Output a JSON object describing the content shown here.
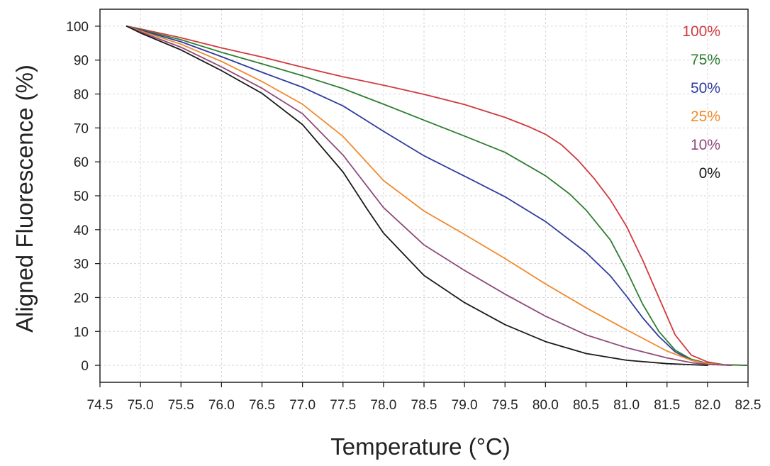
{
  "chart_data": {
    "type": "line",
    "xlabel": "Temperature (°C)",
    "ylabel": "Aligned Fluorescence (%)",
    "xlim": [
      74.5,
      82.5
    ],
    "ylim": [
      -5,
      105
    ],
    "x_ticks": [
      74.5,
      75.0,
      75.5,
      76.0,
      76.5,
      77.0,
      77.5,
      78.0,
      78.5,
      79.0,
      79.5,
      80.0,
      80.5,
      81.0,
      81.5,
      82.0,
      82.5
    ],
    "x_tick_labels": [
      "74.5",
      "75.0",
      "75.5",
      "76.0",
      "76.5",
      "77.0",
      "77.5",
      "78.0",
      "78.5",
      "79.0",
      "79.5",
      "80.0",
      "80.5",
      "81.0",
      "81.5",
      "82.0",
      "82.5"
    ],
    "y_ticks": [
      0,
      10,
      20,
      30,
      40,
      50,
      60,
      70,
      80,
      90,
      100
    ],
    "y_tick_labels": [
      "0",
      "10",
      "20",
      "30",
      "40",
      "50",
      "60",
      "70",
      "80",
      "90",
      "100"
    ],
    "grid": true,
    "legend_position": "top-right",
    "series": [
      {
        "name": "100%",
        "color": "#d03a3f",
        "points": [
          [
            74.83,
            100
          ],
          [
            75.0,
            99.2
          ],
          [
            75.5,
            96.6
          ],
          [
            76.0,
            93.6
          ],
          [
            76.5,
            90.9
          ],
          [
            77.0,
            87.9
          ],
          [
            77.5,
            85.1
          ],
          [
            78.0,
            82.6
          ],
          [
            78.5,
            79.9
          ],
          [
            79.0,
            76.9
          ],
          [
            79.5,
            73.1
          ],
          [
            79.8,
            70.3
          ],
          [
            80.0,
            68.1
          ],
          [
            80.2,
            65.0
          ],
          [
            80.4,
            60.5
          ],
          [
            80.6,
            55.1
          ],
          [
            80.8,
            48.8
          ],
          [
            81.0,
            41.0
          ],
          [
            81.2,
            31.0
          ],
          [
            81.4,
            20.0
          ],
          [
            81.6,
            9.0
          ],
          [
            81.8,
            3.0
          ],
          [
            82.0,
            1.0
          ],
          [
            82.2,
            0.2
          ],
          [
            82.5,
            0
          ]
        ]
      },
      {
        "name": "75%",
        "color": "#2e7d32",
        "points": [
          [
            74.83,
            100
          ],
          [
            75.0,
            99.0
          ],
          [
            75.5,
            96.0
          ],
          [
            76.0,
            92.3
          ],
          [
            76.5,
            88.9
          ],
          [
            77.0,
            85.4
          ],
          [
            77.5,
            81.6
          ],
          [
            78.0,
            77.0
          ],
          [
            78.5,
            72.3
          ],
          [
            79.0,
            67.6
          ],
          [
            79.5,
            62.8
          ],
          [
            80.0,
            55.9
          ],
          [
            80.3,
            50.5
          ],
          [
            80.5,
            45.8
          ],
          [
            80.8,
            37.0
          ],
          [
            81.0,
            28.0
          ],
          [
            81.2,
            18.0
          ],
          [
            81.4,
            10.0
          ],
          [
            81.6,
            4.5
          ],
          [
            81.8,
            1.8
          ],
          [
            82.0,
            0.6
          ],
          [
            82.2,
            0.2
          ],
          [
            82.5,
            0
          ]
        ]
      },
      {
        "name": "50%",
        "color": "#2f3c9e",
        "points": [
          [
            74.83,
            100
          ],
          [
            75.0,
            98.8
          ],
          [
            75.5,
            95.4
          ],
          [
            76.0,
            91.0
          ],
          [
            76.5,
            86.4
          ],
          [
            77.0,
            82.0
          ],
          [
            77.5,
            76.5
          ],
          [
            78.0,
            69.0
          ],
          [
            78.5,
            61.8
          ],
          [
            79.0,
            55.8
          ],
          [
            79.5,
            49.7
          ],
          [
            80.0,
            42.4
          ],
          [
            80.5,
            33.3
          ],
          [
            80.8,
            26.4
          ],
          [
            81.0,
            20.4
          ],
          [
            81.2,
            14.0
          ],
          [
            81.4,
            8.5
          ],
          [
            81.6,
            4.0
          ],
          [
            81.8,
            1.5
          ],
          [
            82.0,
            0.5
          ],
          [
            82.3,
            0
          ]
        ]
      },
      {
        "name": "25%",
        "color": "#f08a2e",
        "points": [
          [
            74.83,
            100
          ],
          [
            75.0,
            98.6
          ],
          [
            75.5,
            94.7
          ],
          [
            76.0,
            89.6
          ],
          [
            76.5,
            83.7
          ],
          [
            77.0,
            77.0
          ],
          [
            77.5,
            67.5
          ],
          [
            78.0,
            54.5
          ],
          [
            78.5,
            45.5
          ],
          [
            79.0,
            38.6
          ],
          [
            79.5,
            31.5
          ],
          [
            80.0,
            24.0
          ],
          [
            80.5,
            17.0
          ],
          [
            81.0,
            10.5
          ],
          [
            81.5,
            4.2
          ],
          [
            81.8,
            1.5
          ],
          [
            82.0,
            0.5
          ],
          [
            82.3,
            0
          ]
        ]
      },
      {
        "name": "10%",
        "color": "#8e4b7a",
        "points": [
          [
            74.83,
            100
          ],
          [
            75.0,
            98.3
          ],
          [
            75.5,
            93.8
          ],
          [
            76.0,
            88.0
          ],
          [
            76.5,
            81.7
          ],
          [
            77.0,
            74.2
          ],
          [
            77.5,
            62.0
          ],
          [
            78.0,
            46.5
          ],
          [
            78.5,
            35.5
          ],
          [
            79.0,
            28.0
          ],
          [
            79.5,
            21.0
          ],
          [
            80.0,
            14.5
          ],
          [
            80.5,
            9.0
          ],
          [
            81.0,
            5.2
          ],
          [
            81.5,
            2.2
          ],
          [
            81.8,
            0.8
          ],
          [
            82.0,
            0.3
          ],
          [
            82.3,
            0
          ]
        ]
      },
      {
        "name": "0%",
        "color": "#1a1a1a",
        "points": [
          [
            74.83,
            100
          ],
          [
            75.0,
            98.0
          ],
          [
            75.5,
            93.0
          ],
          [
            76.0,
            86.9
          ],
          [
            76.5,
            80.2
          ],
          [
            77.0,
            71.0
          ],
          [
            77.5,
            57.0
          ],
          [
            77.8,
            46.0
          ],
          [
            78.0,
            39.0
          ],
          [
            78.5,
            26.5
          ],
          [
            79.0,
            18.5
          ],
          [
            79.5,
            12.0
          ],
          [
            80.0,
            7.0
          ],
          [
            80.5,
            3.5
          ],
          [
            81.0,
            1.5
          ],
          [
            81.5,
            0.5
          ],
          [
            81.8,
            0.2
          ],
          [
            82.0,
            0
          ]
        ]
      }
    ]
  }
}
